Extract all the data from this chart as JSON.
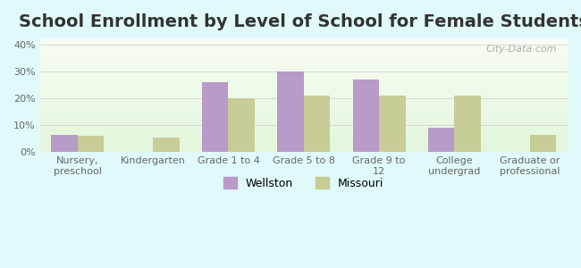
{
  "title": "School Enrollment by Level of School for Female Students",
  "categories": [
    "Nursery,\npreschool",
    "Kindergarten",
    "Grade 1 to 4",
    "Grade 5 to 8",
    "Grade 9 to\n12",
    "College\nundergrad",
    "Graduate or\nprofessional"
  ],
  "wellston": [
    6.5,
    0,
    26,
    30,
    27,
    9,
    0
  ],
  "missouri": [
    6,
    5.5,
    20,
    21,
    21,
    21,
    6.5
  ],
  "wellston_color": "#b89bc8",
  "missouri_color": "#c8cc96",
  "ylim": [
    0,
    42
  ],
  "yticks": [
    0,
    10,
    20,
    30,
    40
  ],
  "ytick_labels": [
    "0%",
    "10%",
    "20%",
    "30%",
    "40%"
  ],
  "background_color": "#e0fafa",
  "plot_bg_top": "#f0fff0",
  "plot_bg_bottom": "#e8f8e0",
  "legend_wellston": "Wellston",
  "legend_missouri": "Missouri",
  "bar_width": 0.35,
  "title_fontsize": 14,
  "tick_fontsize": 8,
  "legend_fontsize": 9,
  "grid_color": "#cccccc"
}
